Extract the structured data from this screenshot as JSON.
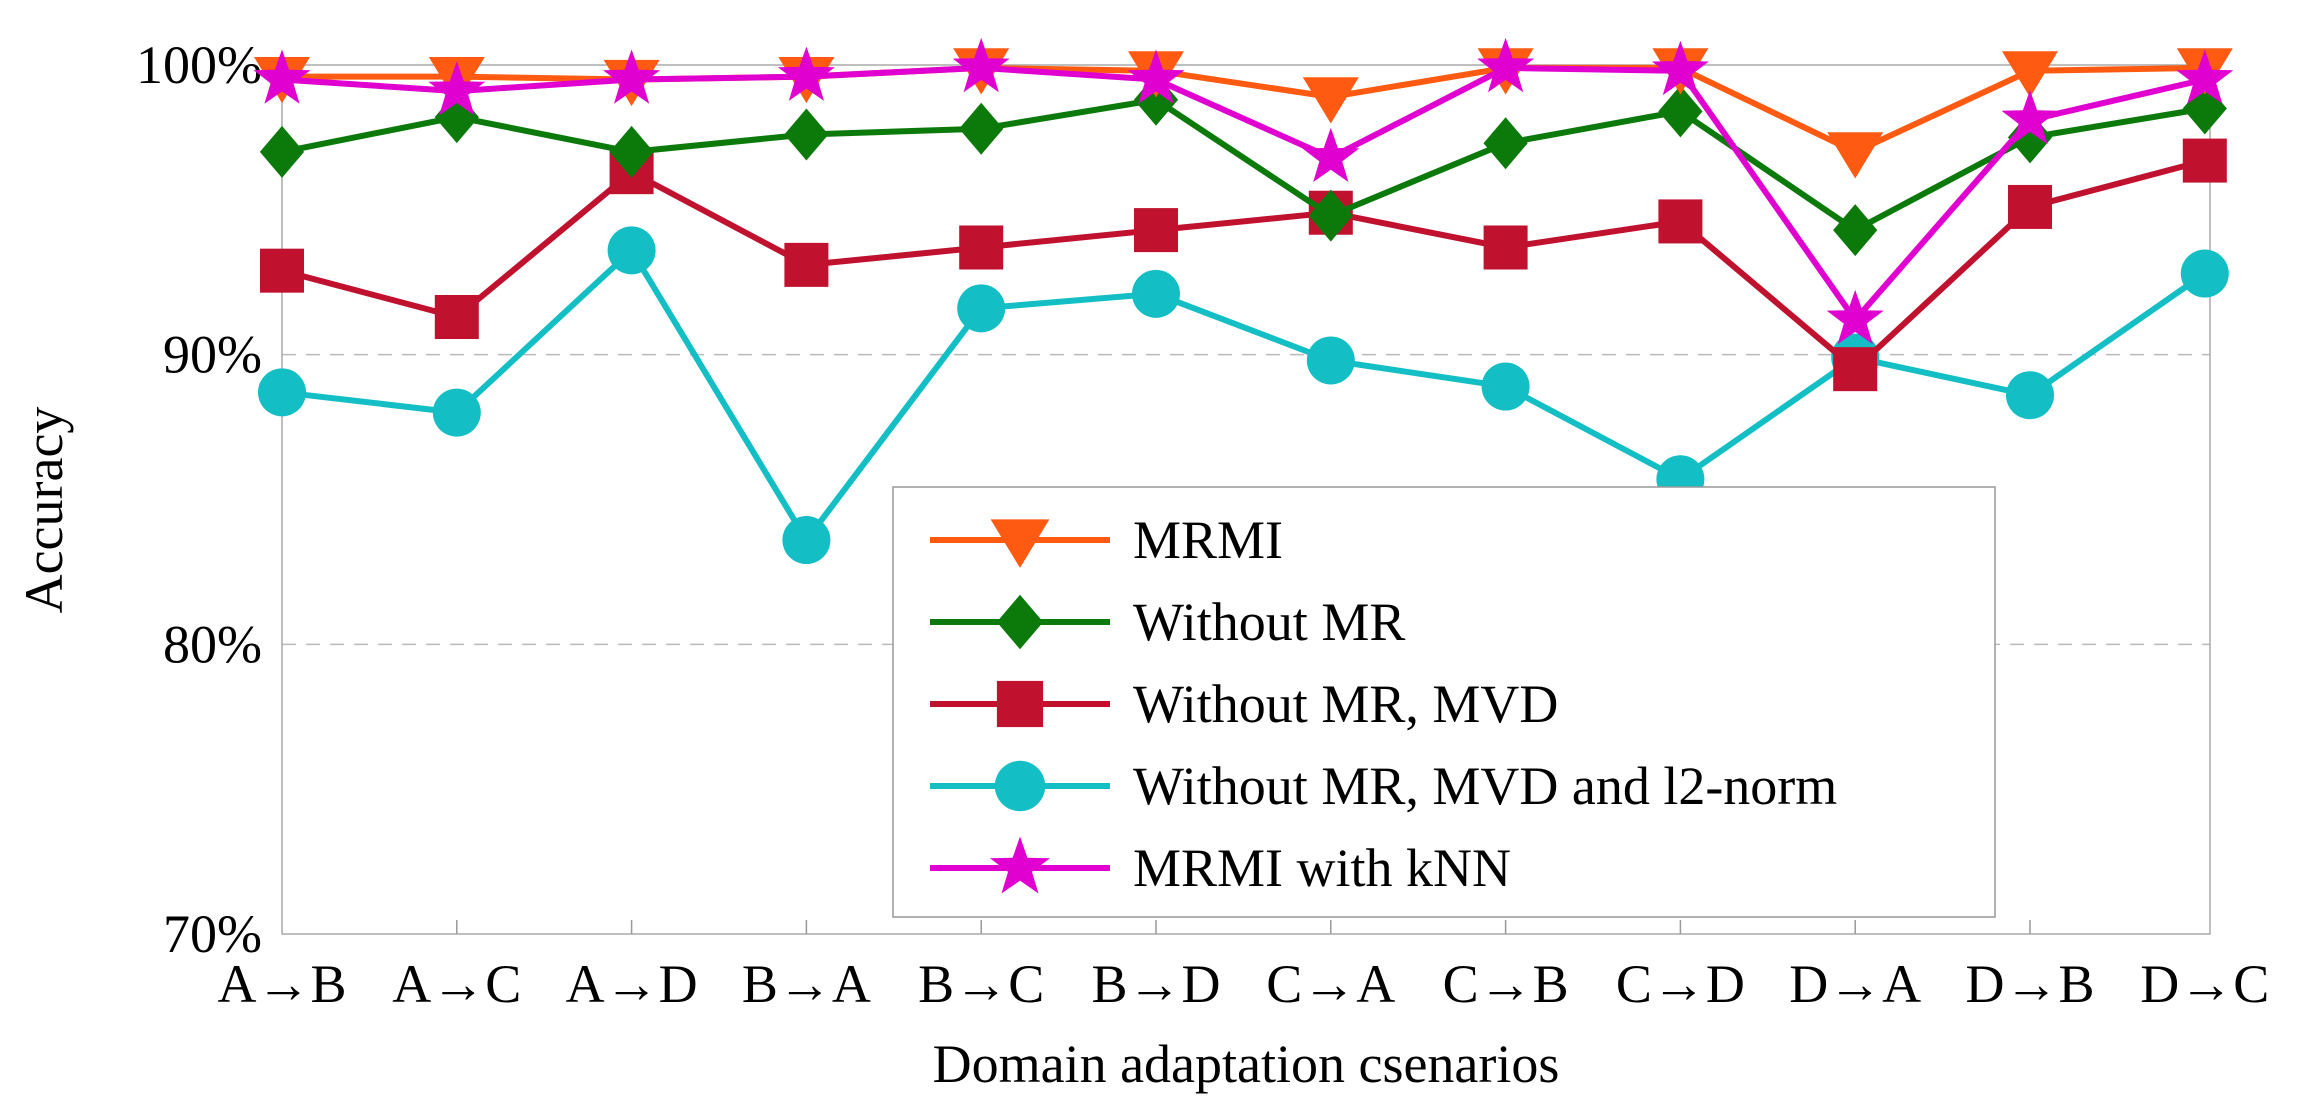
{
  "chart_data": {
    "type": "line",
    "title": "",
    "xlabel": "Domain adaptation csenarios",
    "ylabel": "Accuracy",
    "categories": [
      "A→B",
      "A→C",
      "A→D",
      "B→A",
      "B→C",
      "B→D",
      "C→A",
      "C→B",
      "C→D",
      "D→A",
      "D→B",
      "D→C"
    ],
    "ylim": [
      70,
      100
    ],
    "yticks": [
      70,
      80,
      90,
      100
    ],
    "ytick_labels": [
      "70%",
      "80%",
      "90%",
      "100%"
    ],
    "grid": true,
    "legend_position": "center-right",
    "series": [
      {
        "name": "MRMI",
        "marker": "triangle-down",
        "color": "#FF5A12",
        "values": [
          99.6,
          99.6,
          99.5,
          99.6,
          99.9,
          99.8,
          98.9,
          99.9,
          99.9,
          97.0,
          99.8,
          99.9
        ]
      },
      {
        "name": "Without MR",
        "marker": "diamond",
        "color": "#0B7A0B",
        "values": [
          97.0,
          98.2,
          97.0,
          97.6,
          97.8,
          98.8,
          94.8,
          97.3,
          98.4,
          94.3,
          97.5,
          98.5
        ]
      },
      {
        "name": "Without MR, MVD",
        "marker": "square",
        "color": "#C0112E",
        "values": [
          92.9,
          91.3,
          96.3,
          93.1,
          93.7,
          94.3,
          94.9,
          93.7,
          94.6,
          89.5,
          95.1,
          96.7
        ]
      },
      {
        "name": "Without MR, MVD and l2-norm",
        "marker": "circle",
        "color": "#13BFC4",
        "values": [
          88.7,
          88.0,
          93.6,
          83.6,
          91.6,
          92.1,
          89.8,
          88.9,
          85.7,
          89.9,
          88.6,
          92.8
        ]
      },
      {
        "name": "MRMI with kNN",
        "marker": "star",
        "color": "#E000D0",
        "values": [
          99.5,
          99.1,
          99.5,
          99.6,
          99.9,
          99.5,
          96.8,
          99.9,
          99.8,
          91.2,
          98.1,
          99.5
        ]
      }
    ]
  }
}
